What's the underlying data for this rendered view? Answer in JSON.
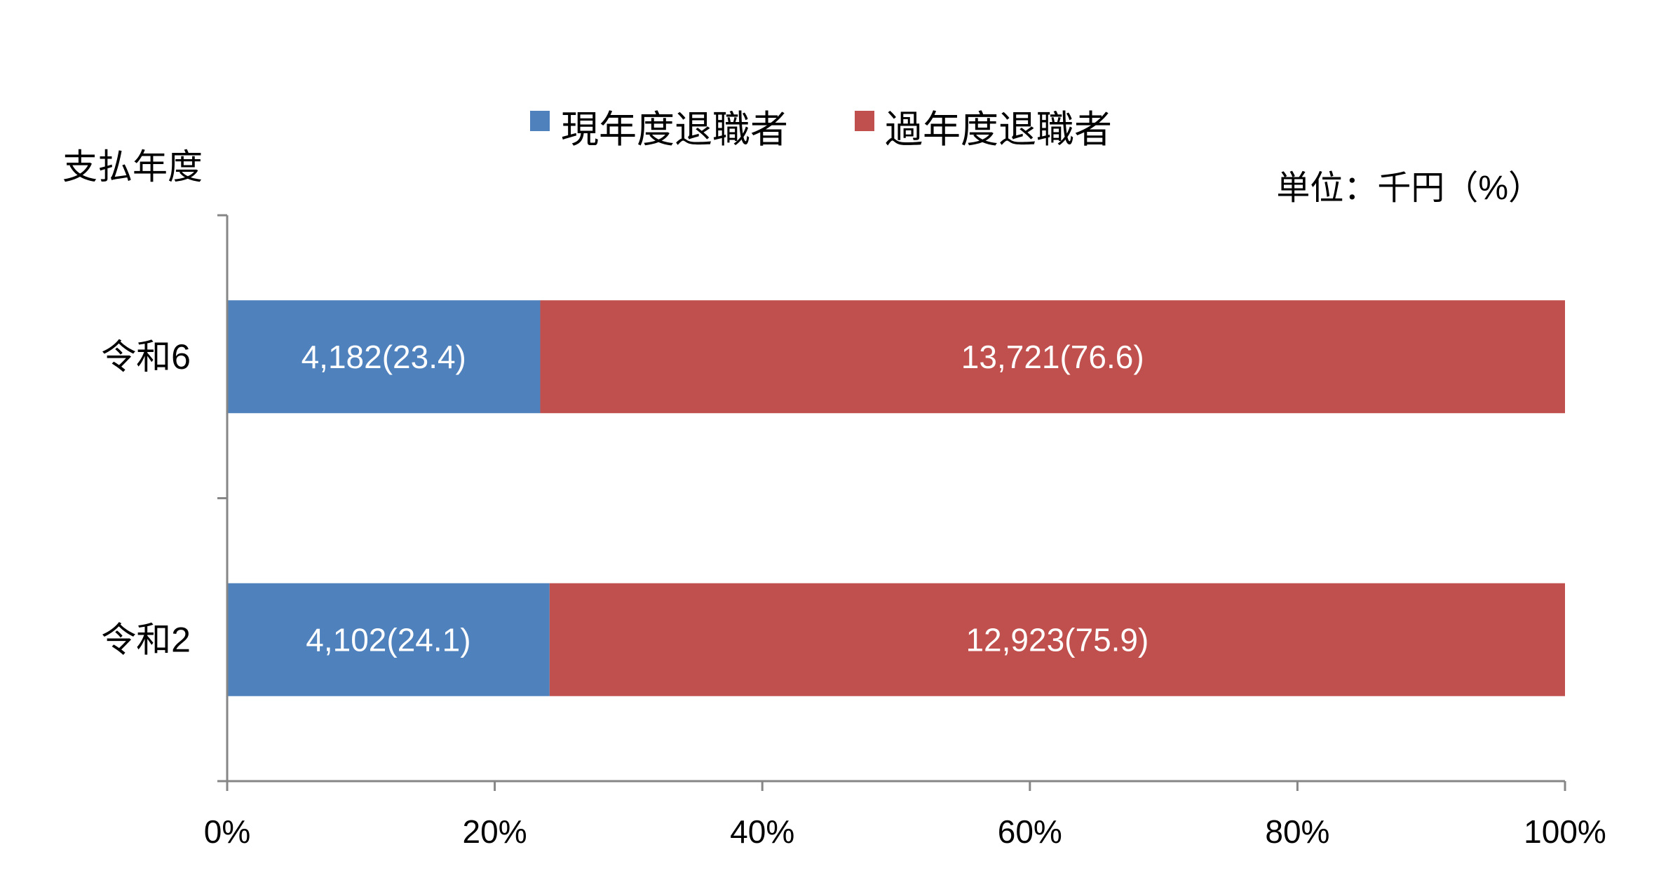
{
  "chart_data": {
    "type": "bar",
    "orientation": "horizontal",
    "stacked": "percent",
    "title": "",
    "ylabel": "支払年度",
    "unit_note": "単位：千円（%）",
    "categories": [
      "令和6",
      "令和2"
    ],
    "series": [
      {
        "name": "現年度退職者",
        "color": "#4F81BD",
        "values": [
          4182,
          4102
        ],
        "percent": [
          23.4,
          24.1
        ],
        "labels": [
          "4,182(23.4)",
          "4,102(24.1)"
        ]
      },
      {
        "name": "過年度退職者",
        "color": "#C0504D",
        "values": [
          13721,
          12923
        ],
        "percent": [
          76.6,
          75.9
        ],
        "labels": [
          "13,721(76.6)",
          "12,923(75.9)"
        ]
      }
    ],
    "xlim": [
      0,
      100
    ],
    "xticks": [
      "0%",
      "20%",
      "40%",
      "60%",
      "80%",
      "100%"
    ],
    "grid": false,
    "legend_position": "top"
  }
}
